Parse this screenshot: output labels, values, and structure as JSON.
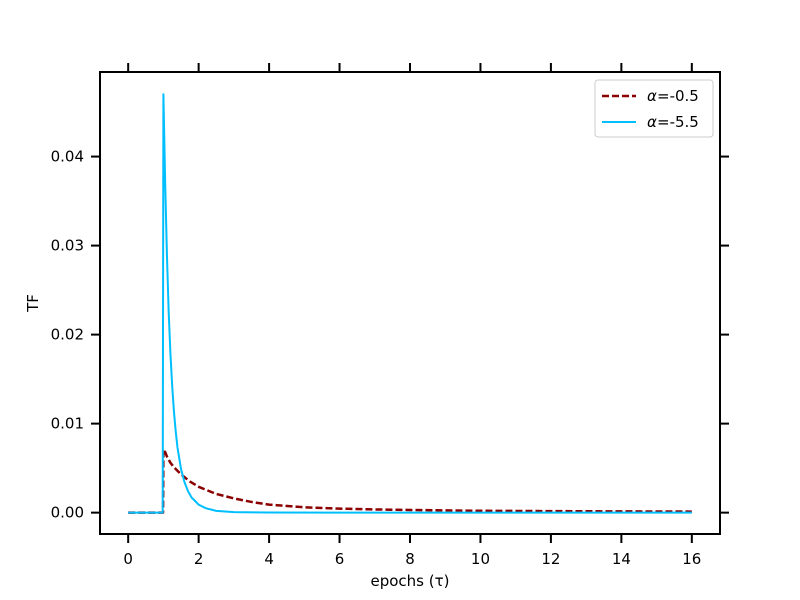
{
  "chart_data": {
    "type": "line",
    "title": "",
    "xlabel": "epochs (τ)",
    "ylabel": "TF",
    "xlim": [
      -0.8,
      16.8
    ],
    "ylim": [
      -0.0024,
      0.0495
    ],
    "x_ticks": [
      0,
      2,
      4,
      6,
      8,
      10,
      12,
      14,
      16
    ],
    "y_ticks": [
      0.0,
      0.01,
      0.02,
      0.03,
      0.04
    ],
    "x_tick_labels": [
      "0",
      "2",
      "4",
      "6",
      "8",
      "10",
      "12",
      "14",
      "16"
    ],
    "y_tick_labels": [
      "0.00",
      "0.01",
      "0.02",
      "0.03",
      "0.04"
    ],
    "grid": false,
    "legend_position": "top-right",
    "series": [
      {
        "name": "α=-0.5",
        "legend_label": "=-0.5",
        "color": "#8b0000",
        "style": "dashed",
        "x": [
          0,
          0.5,
          0.99,
          1.0,
          1.05,
          1.1,
          1.2,
          1.3,
          1.5,
          1.75,
          2.0,
          2.5,
          3.0,
          3.5,
          4.0,
          5.0,
          6.0,
          7.0,
          8.0,
          9.0,
          10.0,
          12.0,
          14.0,
          16.0
        ],
        "y": [
          0,
          0,
          0,
          0.0071,
          0.0068,
          0.0063,
          0.0056,
          0.0051,
          0.0043,
          0.0035,
          0.0029,
          0.0021,
          0.0016,
          0.0012,
          0.0009,
          0.0006,
          0.00045,
          0.00036,
          0.0003,
          0.00025,
          0.00021,
          0.00017,
          0.00014,
          0.00012
        ]
      },
      {
        "name": "α=-5.5",
        "legend_label": "=-5.5",
        "color": "#00bfff",
        "style": "solid",
        "x": [
          0,
          0.5,
          0.98,
          1.0,
          1.05,
          1.1,
          1.15,
          1.2,
          1.25,
          1.3,
          1.35,
          1.4,
          1.5,
          1.6,
          1.7,
          1.8,
          2.0,
          2.2,
          2.5,
          3.0,
          4.0,
          6.0,
          8.0,
          12.0,
          16.0
        ],
        "y": [
          0,
          0,
          0,
          0.047,
          0.037,
          0.029,
          0.0225,
          0.0178,
          0.0142,
          0.0113,
          0.0091,
          0.0073,
          0.0049,
          0.0034,
          0.0024,
          0.0017,
          0.0009,
          0.0005,
          0.0002,
          6e-05,
          1e-05,
          0,
          0,
          0,
          0
        ]
      }
    ]
  }
}
